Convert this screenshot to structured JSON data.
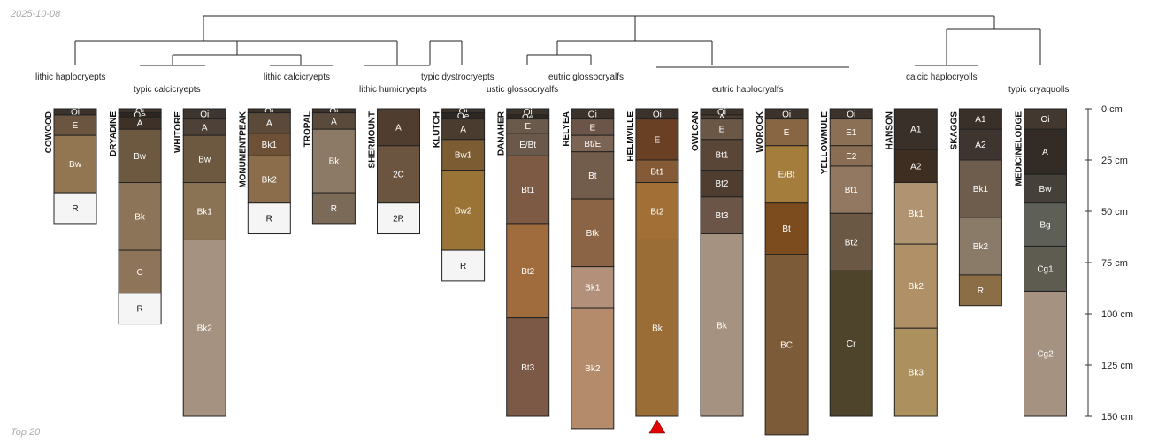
{
  "header": {
    "date": "2025-10-08"
  },
  "footer": {
    "caption": "Top 20"
  },
  "depth_axis": {
    "unit": "cm",
    "max": 150,
    "ticks": [
      {
        "value": 0,
        "label": "0 cm"
      },
      {
        "value": 25,
        "label": "25 cm"
      },
      {
        "value": 50,
        "label": "50 cm"
      },
      {
        "value": 75,
        "label": "75 cm"
      },
      {
        "value": 100,
        "label": "100 cm"
      },
      {
        "value": 125,
        "label": "125 cm"
      },
      {
        "value": 150,
        "label": "150 cm"
      }
    ]
  },
  "marker": {
    "profile": "HELMVILLE",
    "color": "#e00000"
  },
  "taxa": [
    "lithic haplocryepts",
    "typic calcicryepts",
    "lithic calcicryepts",
    "lithic humicryepts",
    "typic dystrocryepts",
    "ustic glossocryalfs",
    "eutric glossocryalfs",
    "eutric haplocryalfs",
    "calcic haplocryolls",
    "typic cryaquolls"
  ],
  "profiles": [
    {
      "name": "COWOOD",
      "horizons": [
        {
          "name": "Oi",
          "top": 0,
          "bottom": 3,
          "color": "#3a322b"
        },
        {
          "name": "E",
          "top": 3,
          "bottom": 13,
          "color": "#6b5540"
        },
        {
          "name": "Bw",
          "top": 13,
          "bottom": 41,
          "color": "#927652"
        },
        {
          "name": "R",
          "top": 41,
          "bottom": 56,
          "color": "#f5f5f5"
        }
      ]
    },
    {
      "name": "DRYADINE",
      "horizons": [
        {
          "name": "Oi",
          "top": 0,
          "bottom": 2,
          "color": "#3a322b"
        },
        {
          "name": "Oe",
          "top": 2,
          "bottom": 4,
          "color": "#2e2620"
        },
        {
          "name": "A",
          "top": 4,
          "bottom": 10,
          "color": "#3e3228"
        },
        {
          "name": "Bw",
          "top": 10,
          "bottom": 36,
          "color": "#6d5840"
        },
        {
          "name": "Bk",
          "top": 36,
          "bottom": 69,
          "color": "#8c7458"
        },
        {
          "name": "C",
          "top": 69,
          "bottom": 90,
          "color": "#8e7559"
        },
        {
          "name": "R",
          "top": 90,
          "bottom": 105,
          "color": "#f5f5f5"
        }
      ]
    },
    {
      "name": "WHITORE",
      "horizons": [
        {
          "name": "Oi",
          "top": 0,
          "bottom": 5,
          "color": "#3e3630"
        },
        {
          "name": "A",
          "top": 5,
          "bottom": 13,
          "color": "#4e4238"
        },
        {
          "name": "Bw",
          "top": 13,
          "bottom": 36,
          "color": "#6d5840"
        },
        {
          "name": "Bk1",
          "top": 36,
          "bottom": 64,
          "color": "#8a7255"
        },
        {
          "name": "Bk2",
          "top": 64,
          "bottom": 150,
          "color": "#a69280"
        }
      ]
    },
    {
      "name": "MONUMENTPEAK",
      "horizons": [
        {
          "name": "Oi",
          "top": 0,
          "bottom": 2,
          "color": "#3a322b"
        },
        {
          "name": "A",
          "top": 2,
          "bottom": 12,
          "color": "#5b4a3a"
        },
        {
          "name": "Bk1",
          "top": 12,
          "bottom": 23,
          "color": "#6d5035"
        },
        {
          "name": "Bk2",
          "top": 23,
          "bottom": 46,
          "color": "#8c6d4b"
        },
        {
          "name": "R",
          "top": 46,
          "bottom": 61,
          "color": "#f5f5f5"
        }
      ]
    },
    {
      "name": "TROPAL",
      "horizons": [
        {
          "name": "Oi",
          "top": 0,
          "bottom": 2,
          "color": "#3a322b"
        },
        {
          "name": "A",
          "top": 2,
          "bottom": 10,
          "color": "#5a4a3c"
        },
        {
          "name": "Bk",
          "top": 10,
          "bottom": 41,
          "color": "#8c7a66"
        },
        {
          "name": "R",
          "top": 41,
          "bottom": 56,
          "color": "#7c6a58"
        }
      ]
    },
    {
      "name": "SHERMOUNT",
      "horizons": [
        {
          "name": "A",
          "top": 0,
          "bottom": 18,
          "color": "#4f3e2f"
        },
        {
          "name": "2C",
          "top": 18,
          "bottom": 46,
          "color": "#6b5540"
        },
        {
          "name": "2R",
          "top": 46,
          "bottom": 61,
          "color": "#f5f5f5"
        }
      ]
    },
    {
      "name": "KLUTCH",
      "horizons": [
        {
          "name": "Oi",
          "top": 0,
          "bottom": 2,
          "color": "#3a322b"
        },
        {
          "name": "Oe",
          "top": 2,
          "bottom": 5,
          "color": "#2e2620"
        },
        {
          "name": "A",
          "top": 5,
          "bottom": 15,
          "color": "#4a3c2e"
        },
        {
          "name": "Bw1",
          "top": 15,
          "bottom": 30,
          "color": "#7c5c33"
        },
        {
          "name": "Bw2",
          "top": 30,
          "bottom": 69,
          "color": "#9a7436"
        },
        {
          "name": "R",
          "top": 69,
          "bottom": 84,
          "color": "#f5f5f5"
        }
      ]
    },
    {
      "name": "DANAHER",
      "horizons": [
        {
          "name": "Oi",
          "top": 0,
          "bottom": 3,
          "color": "#3a322b"
        },
        {
          "name": "Oe",
          "top": 3,
          "bottom": 5,
          "color": "#2e2620"
        },
        {
          "name": "E",
          "top": 5,
          "bottom": 12,
          "color": "#6a5a4c"
        },
        {
          "name": "E/Bt",
          "top": 12,
          "bottom": 23,
          "color": "#6a584a"
        },
        {
          "name": "Bt1",
          "top": 23,
          "bottom": 56,
          "color": "#7c5a44"
        },
        {
          "name": "Bt2",
          "top": 56,
          "bottom": 102,
          "color": "#a06c3e"
        },
        {
          "name": "Bt3",
          "top": 102,
          "bottom": 150,
          "color": "#7c5846"
        }
      ]
    },
    {
      "name": "RELYEA",
      "horizons": [
        {
          "name": "Oi",
          "top": 0,
          "bottom": 5,
          "color": "#3a322b"
        },
        {
          "name": "E",
          "top": 5,
          "bottom": 13,
          "color": "#6b5548"
        },
        {
          "name": "Bt/E",
          "top": 13,
          "bottom": 21,
          "color": "#7c6454"
        },
        {
          "name": "Bt",
          "top": 21,
          "bottom": 44,
          "color": "#725c4c"
        },
        {
          "name": "Btk",
          "top": 44,
          "bottom": 77,
          "color": "#8a6444"
        },
        {
          "name": "Bk1",
          "top": 77,
          "bottom": 97,
          "color": "#b2907a"
        },
        {
          "name": "Bk2",
          "top": 97,
          "bottom": 156,
          "color": "#b48c6c"
        }
      ]
    },
    {
      "name": "HELMVILLE",
      "horizons": [
        {
          "name": "Oi",
          "top": 0,
          "bottom": 5,
          "color": "#3a322b"
        },
        {
          "name": "E",
          "top": 5,
          "bottom": 25,
          "color": "#6a4024"
        },
        {
          "name": "Bt1",
          "top": 25,
          "bottom": 36,
          "color": "#855a36"
        },
        {
          "name": "Bt2",
          "top": 36,
          "bottom": 64,
          "color": "#a27036"
        },
        {
          "name": "Bk",
          "top": 64,
          "bottom": 150,
          "color": "#9a6c36"
        }
      ]
    },
    {
      "name": "OWLCAN",
      "horizons": [
        {
          "name": "Oi",
          "top": 0,
          "bottom": 3,
          "color": "#3a322b"
        },
        {
          "name": "A",
          "top": 3,
          "bottom": 5,
          "color": "#4a3c2e"
        },
        {
          "name": "E",
          "top": 5,
          "bottom": 15,
          "color": "#6a5746"
        },
        {
          "name": "Bt1",
          "top": 15,
          "bottom": 30,
          "color": "#5a4636"
        },
        {
          "name": "Bt2",
          "top": 30,
          "bottom": 43,
          "color": "#4f3e2f"
        },
        {
          "name": "Bt3",
          "top": 43,
          "bottom": 61,
          "color": "#6a5546"
        },
        {
          "name": "Bk",
          "top": 61,
          "bottom": 150,
          "color": "#a69280"
        }
      ]
    },
    {
      "name": "WOROCK",
      "horizons": [
        {
          "name": "Oi",
          "top": 0,
          "bottom": 5,
          "color": "#3a322b"
        },
        {
          "name": "E",
          "top": 5,
          "bottom": 18,
          "color": "#886644"
        },
        {
          "name": "E/Bt",
          "top": 18,
          "bottom": 46,
          "color": "#a47c3c"
        },
        {
          "name": "Bt",
          "top": 46,
          "bottom": 71,
          "color": "#7c4c1e"
        },
        {
          "name": "BC",
          "top": 71,
          "bottom": 159,
          "color": "#7c5c38"
        }
      ]
    },
    {
      "name": "YELLOWMULE",
      "horizons": [
        {
          "name": "Oi",
          "top": 0,
          "bottom": 5,
          "color": "#3a322b"
        },
        {
          "name": "E1",
          "top": 5,
          "bottom": 18,
          "color": "#8c7056"
        },
        {
          "name": "E2",
          "top": 18,
          "bottom": 28,
          "color": "#8a6e54"
        },
        {
          "name": "Bt1",
          "top": 28,
          "bottom": 51,
          "color": "#927860"
        },
        {
          "name": "Bt2",
          "top": 51,
          "bottom": 79,
          "color": "#6a5844"
        },
        {
          "name": "Cr",
          "top": 79,
          "bottom": 150,
          "color": "#4e442c"
        }
      ]
    },
    {
      "name": "HANSON",
      "horizons": [
        {
          "name": "A1",
          "top": 0,
          "bottom": 20,
          "color": "#3a302a"
        },
        {
          "name": "A2",
          "top": 20,
          "bottom": 36,
          "color": "#3e2e22"
        },
        {
          "name": "Bk1",
          "top": 36,
          "bottom": 66,
          "color": "#b09472"
        },
        {
          "name": "Bk2",
          "top": 66,
          "bottom": 107,
          "color": "#b09066"
        },
        {
          "name": "Bk3",
          "top": 107,
          "bottom": 150,
          "color": "#ac905e"
        }
      ]
    },
    {
      "name": "SKAGGS",
      "horizons": [
        {
          "name": "A1",
          "top": 0,
          "bottom": 10,
          "color": "#3a302a"
        },
        {
          "name": "A2",
          "top": 10,
          "bottom": 25,
          "color": "#3e3530"
        },
        {
          "name": "Bk1",
          "top": 25,
          "bottom": 53,
          "color": "#6e5d4d"
        },
        {
          "name": "Bk2",
          "top": 53,
          "bottom": 81,
          "color": "#8a7b69"
        },
        {
          "name": "R",
          "top": 81,
          "bottom": 96,
          "color": "#8c6e46"
        }
      ]
    },
    {
      "name": "MEDICINELODGE",
      "horizons": [
        {
          "name": "Oi",
          "top": 0,
          "bottom": 10,
          "color": "#42382f"
        },
        {
          "name": "A",
          "top": 10,
          "bottom": 32,
          "color": "#332b25"
        },
        {
          "name": "Bw",
          "top": 32,
          "bottom": 46,
          "color": "#46403a"
        },
        {
          "name": "Bg",
          "top": 46,
          "bottom": 67,
          "color": "#5e6058"
        },
        {
          "name": "Cg1",
          "top": 67,
          "bottom": 89,
          "color": "#5e5c50"
        },
        {
          "name": "Cg2",
          "top": 89,
          "bottom": 150,
          "color": "#a69280"
        }
      ]
    }
  ]
}
